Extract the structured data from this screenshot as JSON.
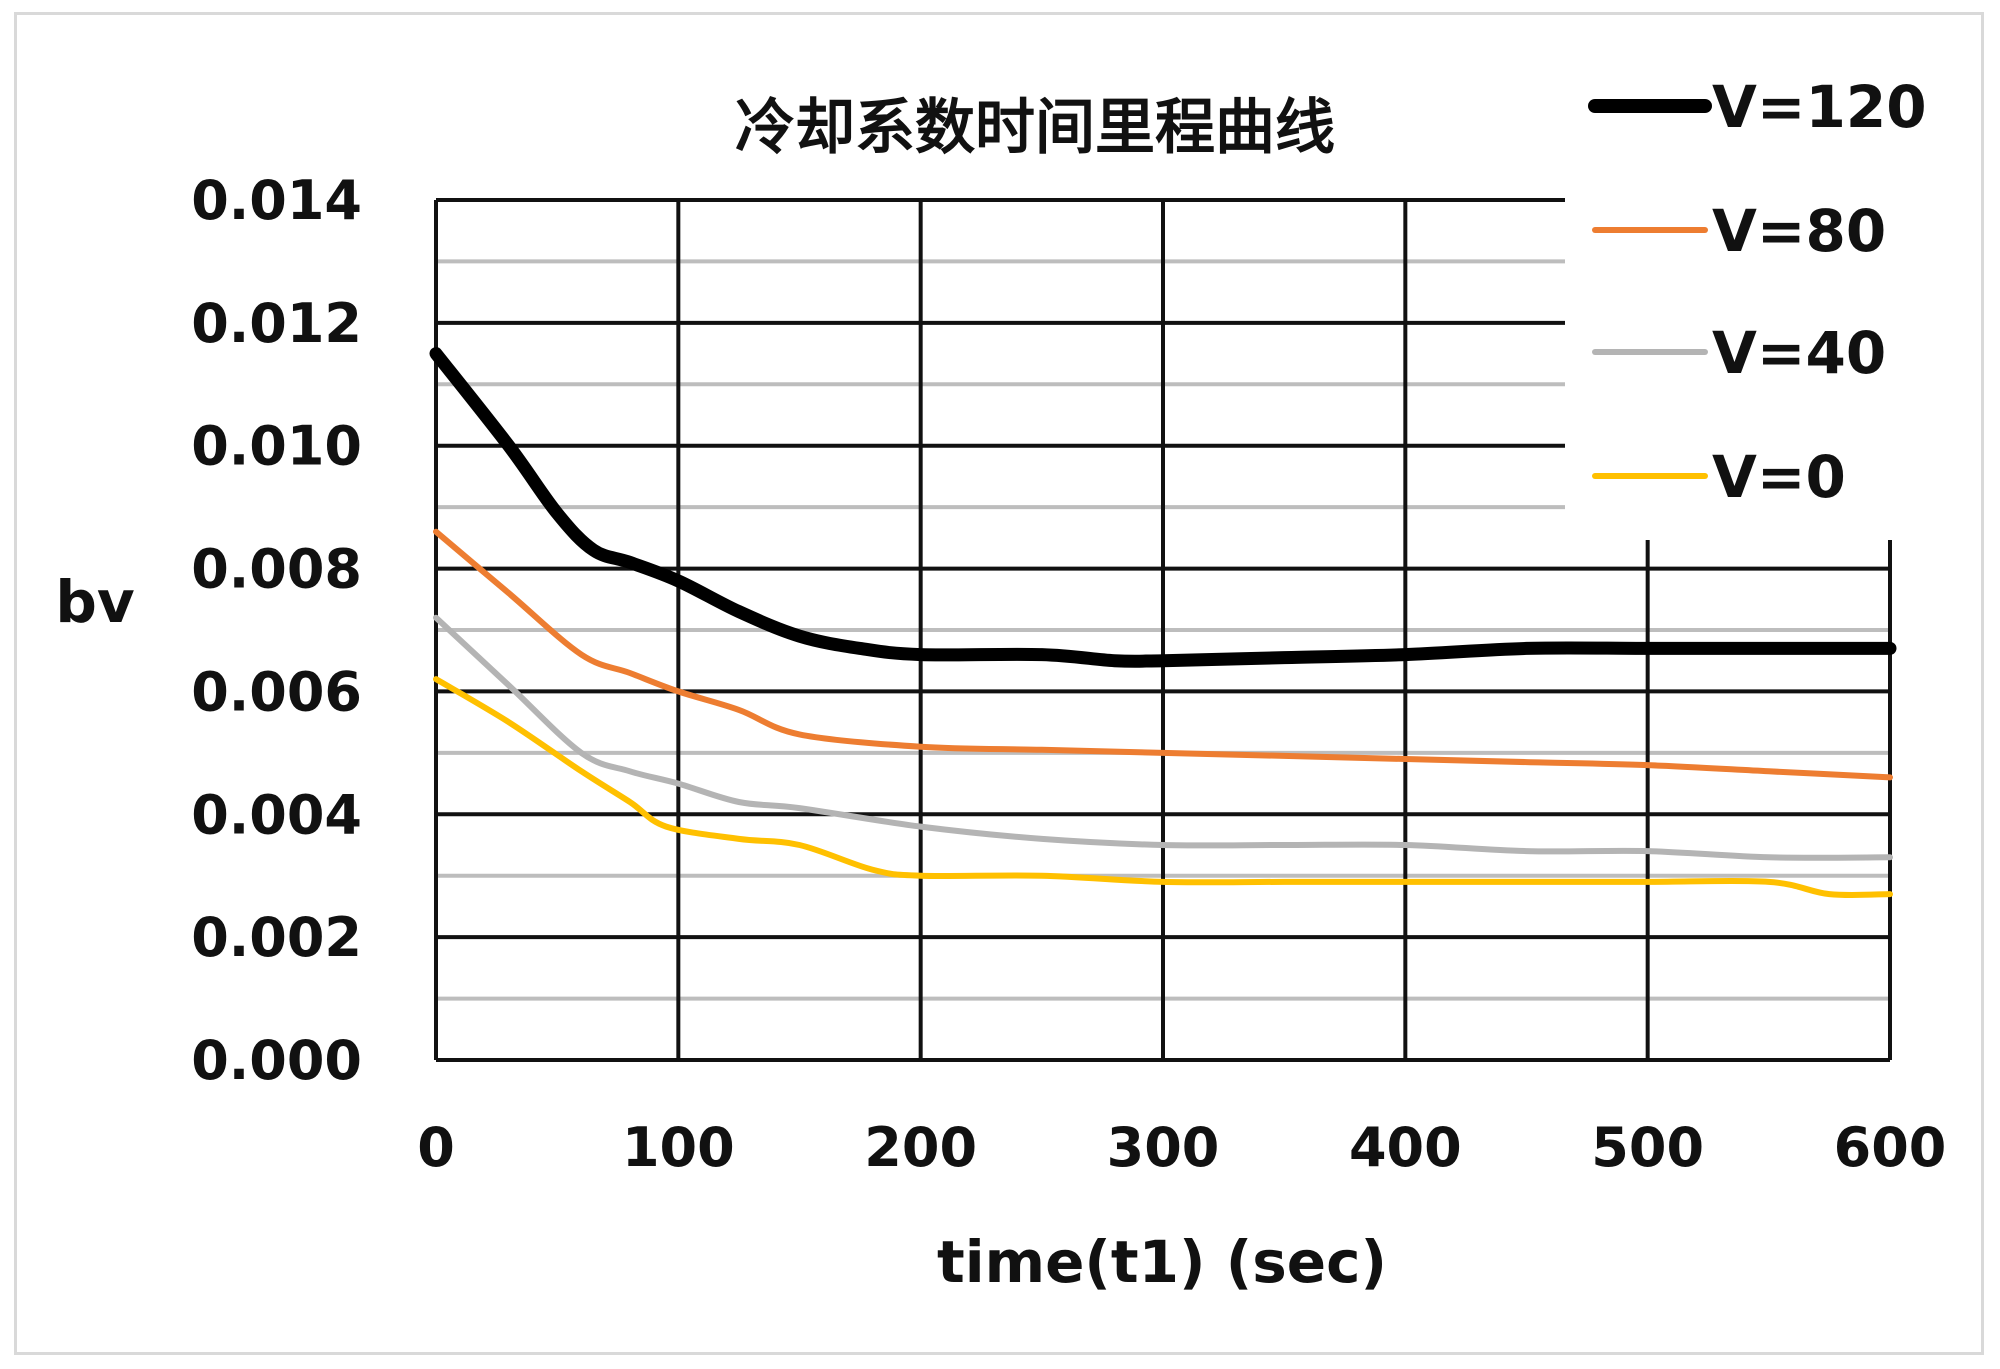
{
  "chart_data": {
    "type": "line",
    "title": "冷却系数时间里程曲线",
    "xlabel": "time(t1)  (sec)",
    "ylabel": "bv",
    "xlim": [
      0,
      600
    ],
    "ylim": [
      0,
      0.014
    ],
    "xticks": [
      "0",
      "100",
      "200",
      "300",
      "400",
      "500",
      "600"
    ],
    "yticks": [
      "0.000",
      "0.002",
      "0.004",
      "0.006",
      "0.008",
      "0.010",
      "0.012",
      "0.014"
    ],
    "grid": true,
    "legend_position": "top-right",
    "series": [
      {
        "name": "V=120",
        "color": "#000000",
        "x": [
          0,
          30,
          50,
          65,
          80,
          100,
          125,
          150,
          175,
          200,
          250,
          280,
          300,
          350,
          400,
          450,
          500,
          550,
          600
        ],
        "y": [
          0.0115,
          0.01,
          0.0089,
          0.0083,
          0.0081,
          0.0078,
          0.0073,
          0.0069,
          0.0067,
          0.0066,
          0.0066,
          0.0065,
          0.0065,
          0.00655,
          0.0066,
          0.0067,
          0.0067,
          0.0067,
          0.0067
        ]
      },
      {
        "name": "V=80",
        "color": "#ed7d31",
        "x": [
          0,
          30,
          60,
          80,
          100,
          125,
          150,
          200,
          250,
          300,
          350,
          400,
          450,
          500,
          550,
          600
        ],
        "y": [
          0.0086,
          0.0076,
          0.0066,
          0.0063,
          0.006,
          0.0057,
          0.0053,
          0.0051,
          0.00505,
          0.005,
          0.00495,
          0.0049,
          0.00485,
          0.0048,
          0.0047,
          0.0046
        ]
      },
      {
        "name": "V=40",
        "color": "#b4b4b4",
        "x": [
          0,
          30,
          60,
          80,
          100,
          125,
          150,
          200,
          250,
          300,
          350,
          400,
          450,
          500,
          550,
          600
        ],
        "y": [
          0.0072,
          0.0061,
          0.005,
          0.0047,
          0.0045,
          0.0042,
          0.0041,
          0.0038,
          0.0036,
          0.0035,
          0.0035,
          0.0035,
          0.0034,
          0.0034,
          0.0033,
          0.0033
        ]
      },
      {
        "name": "V=0",
        "color": "#ffc000",
        "x": [
          0,
          30,
          60,
          80,
          95,
          125,
          150,
          180,
          200,
          250,
          300,
          350,
          400,
          450,
          500,
          550,
          575,
          600
        ],
        "y": [
          0.0062,
          0.0055,
          0.0047,
          0.0042,
          0.0038,
          0.0036,
          0.0035,
          0.0031,
          0.003,
          0.003,
          0.0029,
          0.0029,
          0.0029,
          0.0029,
          0.0029,
          0.0029,
          0.0027,
          0.0027
        ]
      }
    ]
  }
}
